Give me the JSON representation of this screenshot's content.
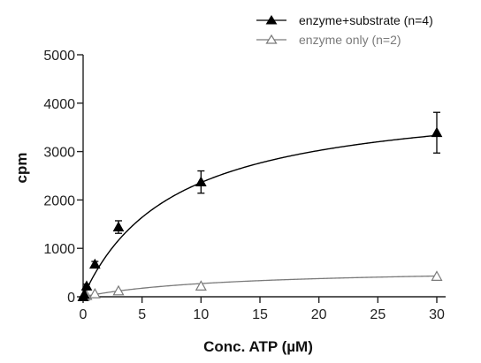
{
  "chart_data": {
    "type": "scatter",
    "xlabel": "Conc. ATP (µM)",
    "ylabel": "cpm",
    "xlim": [
      0,
      30
    ],
    "ylim": [
      0,
      5000
    ],
    "xticks": [
      "0",
      "5",
      "10",
      "15",
      "20",
      "25",
      "30"
    ],
    "yticks": [
      "0",
      "1000",
      "2000",
      "3000",
      "4000",
      "5000"
    ],
    "grid": false,
    "legend_position": "top-right",
    "series": [
      {
        "name": "enzyme+substrate (n=4)",
        "marker": "filled-triangle",
        "color": "#000000",
        "x": [
          0,
          0.1,
          0.3,
          1,
          3,
          10,
          30
        ],
        "y": [
          0,
          50,
          220,
          670,
          1440,
          2370,
          3390
        ],
        "error": [
          0,
          0,
          40,
          60,
          130,
          230,
          420
        ],
        "fit": {
          "model": "michaelis-menten",
          "vmax": 4200,
          "km": 7.8
        }
      },
      {
        "name": "enzyme only (n=2)",
        "marker": "open-triangle",
        "color": "#7a7a7a",
        "x": [
          0,
          0.1,
          0.3,
          1,
          3,
          10,
          30
        ],
        "y": [
          0,
          10,
          25,
          60,
          120,
          220,
          420
        ],
        "error": [
          0,
          0,
          0,
          0,
          0,
          0,
          0
        ],
        "fit": {
          "model": "michaelis-menten",
          "vmax": 600,
          "km": 12
        }
      }
    ]
  }
}
